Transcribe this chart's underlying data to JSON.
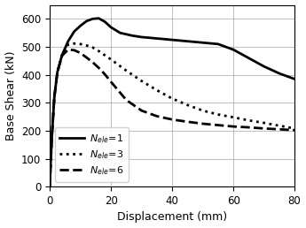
{
  "title": "",
  "xlabel": "Displacement (mm)",
  "ylabel": "Base Shear (kN)",
  "xlim": [
    0,
    80
  ],
  "ylim": [
    0,
    650
  ],
  "xticks": [
    0,
    20,
    40,
    60,
    80
  ],
  "yticks": [
    0,
    100,
    200,
    300,
    400,
    500,
    600
  ],
  "grid": true,
  "legend_loc": "lower left",
  "curves": {
    "N1": {
      "label": "$N_{ele}\\!=\\!1$",
      "linestyle": "solid",
      "linewidth": 2.0,
      "color": "black",
      "x": [
        0,
        0.3,
        0.7,
        1.5,
        2.5,
        4,
        6,
        8,
        10,
        12,
        14,
        16,
        18,
        20,
        23,
        27,
        30,
        35,
        40,
        45,
        50,
        55,
        60,
        65,
        70,
        75,
        80
      ],
      "y": [
        0,
        80,
        180,
        320,
        410,
        470,
        520,
        555,
        575,
        592,
        600,
        602,
        590,
        570,
        550,
        540,
        535,
        530,
        525,
        520,
        515,
        510,
        490,
        460,
        430,
        405,
        385
      ]
    },
    "N3": {
      "label": "$N_{ele}\\!=\\!3$",
      "linestyle": "dotted",
      "linewidth": 2.0,
      "color": "black",
      "x": [
        0,
        0.3,
        0.7,
        1.5,
        2.5,
        4,
        6,
        8,
        10,
        12,
        14,
        16,
        18,
        20,
        25,
        30,
        35,
        40,
        45,
        50,
        55,
        60,
        65,
        70,
        75,
        80
      ],
      "y": [
        0,
        80,
        180,
        320,
        410,
        470,
        508,
        512,
        510,
        505,
        498,
        485,
        470,
        455,
        415,
        378,
        345,
        315,
        292,
        272,
        258,
        248,
        237,
        228,
        218,
        208
      ]
    },
    "N6": {
      "label": "$N_{ele}\\!=\\!6$",
      "linestyle": "dashed",
      "linewidth": 2.0,
      "color": "black",
      "x": [
        0,
        0.3,
        0.7,
        1.5,
        2.5,
        4,
        6,
        8,
        10,
        12,
        14,
        16,
        18,
        20,
        25,
        30,
        35,
        40,
        45,
        50,
        55,
        60,
        65,
        70,
        75,
        80
      ],
      "y": [
        0,
        80,
        180,
        320,
        410,
        468,
        490,
        488,
        478,
        462,
        445,
        425,
        402,
        375,
        310,
        272,
        252,
        240,
        232,
        225,
        220,
        215,
        212,
        208,
        205,
        202
      ]
    }
  },
  "figsize": [
    3.45,
    2.58
  ],
  "dpi": 100
}
